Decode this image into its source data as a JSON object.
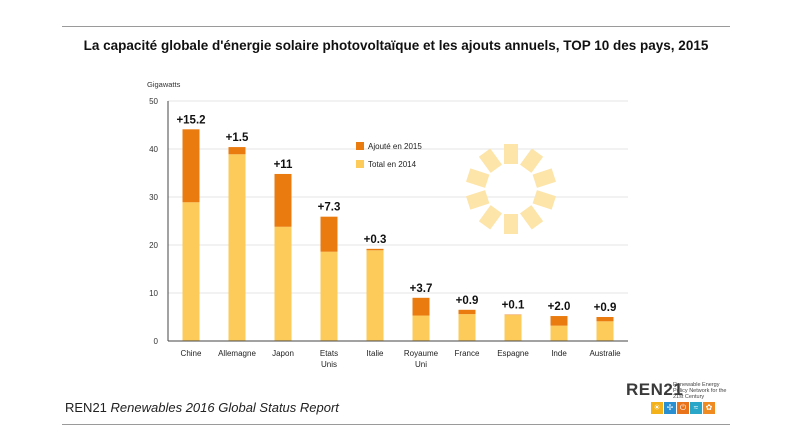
{
  "title": "La capacité globale d'énergie solaire photovoltaïque et les ajouts annuels, TOP 10 des pays, 2015",
  "footer": {
    "org": "REN21",
    "report": "Renewables 2016 Global Status Report"
  },
  "logo": {
    "name": "REN21",
    "tagline": "Renewable Energy Policy Network for the 21st Century",
    "icons": [
      "sun-icon",
      "wind-icon",
      "power-icon",
      "water-icon",
      "leaf-icon"
    ]
  },
  "colors": {
    "added": "#ea7b0f",
    "total": "#fccb5a",
    "ray": "#fde4a8"
  },
  "chart_data": {
    "type": "bar",
    "stacked": true,
    "ylabel": "Gigawatts",
    "ylim": [
      0,
      50
    ],
    "yticks": [
      0,
      10,
      20,
      30,
      40,
      50
    ],
    "grid": true,
    "legend_position": "top-center",
    "categories": [
      "Chine",
      "Allemagne",
      "Japon",
      "Etats Unis",
      "Italie",
      "Royaume Uni",
      "France",
      "Espagne",
      "Inde",
      "Australie"
    ],
    "series": [
      {
        "name": "Total en 2014",
        "values": [
          28.9,
          38.9,
          23.8,
          18.6,
          18.9,
          5.3,
          5.6,
          5.4,
          3.2,
          4.1
        ]
      },
      {
        "name": "Ajouté en 2015",
        "values": [
          15.2,
          1.5,
          11,
          7.3,
          0.3,
          3.7,
          0.9,
          0.1,
          2.0,
          0.9
        ]
      }
    ],
    "annotations": [
      "+15.2",
      "+1.5",
      "+11",
      "+7.3",
      "+0.3",
      "+3.7",
      "+0.9",
      "+0.1",
      "+2.0",
      "+0.9"
    ]
  }
}
